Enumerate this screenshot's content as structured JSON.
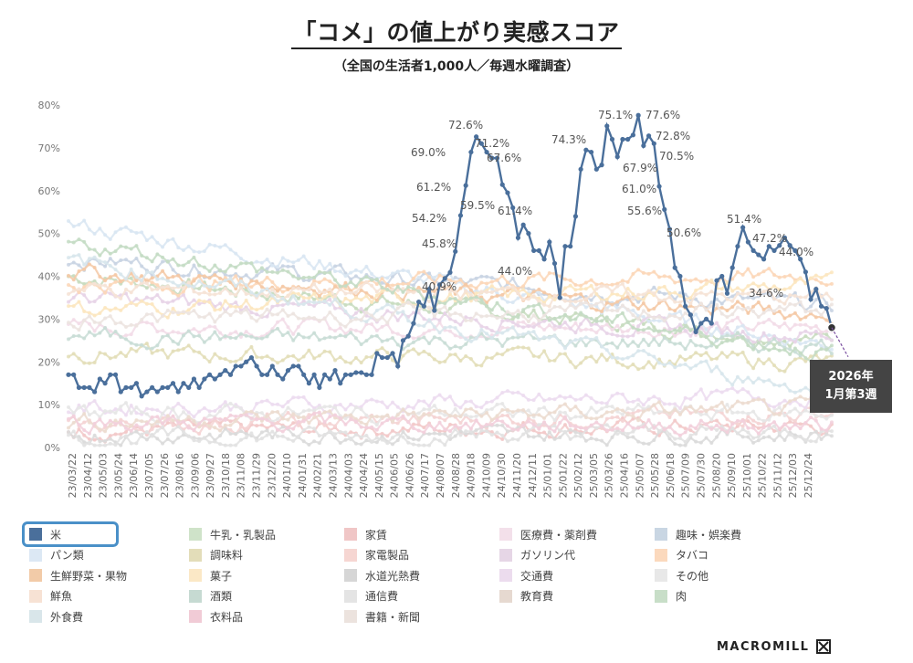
{
  "title": "「コメ」の値上がり実感スコア",
  "subtitle": "（全国の生活者1,000人／毎週水曜調査）",
  "callout": {
    "line1": "2026年",
    "line2": "1月第3週"
  },
  "brand": "MACROMILL",
  "chart_data": {
    "type": "line",
    "ylim": [
      0,
      80
    ],
    "yticks": [
      "0%",
      "10%",
      "20%",
      "30%",
      "40%",
      "50%",
      "60%",
      "70%",
      "80%"
    ],
    "x_tick_labels": [
      "23/03/22",
      "23/04/12",
      "23/05/03",
      "23/05/24",
      "23/06/14",
      "23/07/05",
      "23/07/26",
      "23/08/16",
      "23/09/06",
      "23/09/27",
      "23/10/18",
      "23/11/08",
      "23/11/29",
      "23/12/20",
      "24/01/10",
      "24/01/31",
      "24/02/21",
      "24/03/13",
      "24/04/03",
      "24/04/24",
      "24/05/15",
      "24/06/05",
      "24/06/26",
      "24/07/17",
      "24/08/07",
      "24/08/28",
      "24/09/18",
      "24/10/09",
      "24/10/30",
      "24/11/20",
      "24/12/11",
      "25/01/01",
      "25/01/22",
      "25/02/12",
      "25/03/05",
      "25/03/26",
      "25/04/16",
      "25/05/07",
      "25/05/28",
      "25/06/18",
      "25/07/09",
      "25/07/30",
      "25/08/20",
      "25/09/10",
      "25/10/01",
      "25/10/22",
      "25/11/12",
      "25/12/03",
      "25/12/24"
    ],
    "highlight_series": {
      "name": "米",
      "color": "#4a6f9b",
      "values": [
        17,
        17,
        14,
        14,
        14,
        13,
        16,
        15,
        17,
        17,
        13,
        14,
        14,
        15,
        12,
        13,
        14,
        13,
        14,
        14,
        15,
        13,
        15,
        14,
        16,
        14,
        16,
        17,
        16,
        17,
        18,
        17,
        19,
        19,
        20,
        21,
        19,
        17,
        17,
        19,
        17,
        16,
        18,
        19,
        19,
        17,
        15,
        17,
        14,
        17,
        16,
        18,
        15,
        17,
        17,
        17.5,
        17.5,
        17,
        17,
        22,
        21,
        21,
        22,
        19,
        25,
        26,
        29,
        34,
        33,
        37,
        32,
        38,
        39.5,
        40.9,
        45.8,
        54.2,
        61.2,
        69.0,
        72.6,
        71.0,
        69.0,
        67.6,
        67.6,
        61.4,
        59.5,
        56.0,
        49.0,
        52.0,
        50.0,
        46.0,
        46.0,
        44.0,
        48.0,
        43.0,
        35.0,
        47.0,
        47.0,
        54.0,
        65.0,
        69.5,
        69.0,
        65.0,
        66.0,
        75.1,
        72.0,
        67.9,
        72.0,
        72.0,
        73.0,
        77.6,
        70.5,
        72.8,
        71.0,
        61.0,
        55.6,
        51.0,
        42.0,
        40.0,
        33.0,
        31.0,
        27.0,
        29.0,
        30.0,
        29.0,
        39.0,
        40.0,
        36.0,
        42.0,
        47.0,
        51.4,
        48.0,
        46.0,
        45.0,
        44.0,
        47.0,
        46.0,
        47.2,
        49.0,
        47.2,
        46.0,
        44.0,
        41.0,
        34.6,
        37.0,
        33.0,
        32.5,
        28.0
      ],
      "data_labels": [
        {
          "value": "40.9%"
        },
        {
          "value": "45.8%"
        },
        {
          "value": "54.2%"
        },
        {
          "value": "61.2%"
        },
        {
          "value": "69.0%"
        },
        {
          "value": "72.6%"
        },
        {
          "value": "71.2%"
        },
        {
          "value": "67.6%"
        },
        {
          "value": "59.5%"
        },
        {
          "value": "61.4%"
        },
        {
          "value": "44.0%"
        },
        {
          "value": "74.3%"
        },
        {
          "value": "75.1%"
        },
        {
          "value": "67.9%"
        },
        {
          "value": "61.0%"
        },
        {
          "value": "77.6%"
        },
        {
          "value": "72.8%"
        },
        {
          "value": "70.5%"
        },
        {
          "value": "55.6%"
        },
        {
          "value": "50.6%"
        },
        {
          "value": "51.4%"
        },
        {
          "value": "47.2%"
        },
        {
          "value": "44.0%"
        },
        {
          "value": "34.6%"
        }
      ]
    },
    "background_series_levels": [
      {
        "color": "#c8dcc0",
        "start": 40,
        "end": 25
      },
      {
        "color": "#f2c9c9",
        "start": 4,
        "end": 5
      },
      {
        "color": "#f2dce8",
        "start": 28,
        "end": 28
      },
      {
        "color": "#c9d4e3",
        "start": 44,
        "end": 33
      },
      {
        "color": "#d9e6f2",
        "start": 52,
        "end": 24
      },
      {
        "color": "#e3deb8",
        "start": 22,
        "end": 20
      },
      {
        "color": "#f5d3d3",
        "start": 5,
        "end": 8
      },
      {
        "color": "#e8d4e8",
        "start": 35,
        "end": 26
      },
      {
        "color": "#fbd7b8",
        "start": 38,
        "end": 40
      },
      {
        "color": "#f4c9a6",
        "start": 41,
        "end": 31
      },
      {
        "color": "#fbe6c0",
        "start": 32,
        "end": 38
      },
      {
        "color": "#dadada",
        "start": 3,
        "end": 3
      },
      {
        "color": "#ecdcf0",
        "start": 9,
        "end": 12
      },
      {
        "color": "#e6e6e6",
        "start": 8,
        "end": 8
      },
      {
        "color": "#f6e3d6",
        "start": 37,
        "end": 35
      },
      {
        "color": "#c9ddd6",
        "start": 26,
        "end": 24
      },
      {
        "color": "#e2e2e2",
        "start": 2,
        "end": 4
      },
      {
        "color": "#ecdcd0",
        "start": 6,
        "end": 9
      },
      {
        "color": "#c4dcc4",
        "start": 48,
        "end": 22
      },
      {
        "color": "#d8e6ec",
        "start": 44,
        "end": 13
      },
      {
        "color": "#f2d0dc",
        "start": 6,
        "end": 5
      },
      {
        "color": "#ece4e0",
        "start": 30,
        "end": 32
      }
    ],
    "legend": [
      {
        "label": "米",
        "color": "#4a6f9b"
      },
      {
        "label": "牛乳・乳製品",
        "color": "#cfe3c9"
      },
      {
        "label": "家賃",
        "color": "#f0c6c6"
      },
      {
        "label": "医療費・薬剤費",
        "color": "#f3e0ea"
      },
      {
        "label": "趣味・娯楽費",
        "color": "#c9d6e3"
      },
      {
        "label": "パン類",
        "color": "#dce8f4"
      },
      {
        "label": "調味料",
        "color": "#e3ddb9"
      },
      {
        "label": "家電製品",
        "color": "#f6d6d2"
      },
      {
        "label": "ガソリン代",
        "color": "#e6d6e6"
      },
      {
        "label": "タバコ",
        "color": "#fbd9bd"
      },
      {
        "label": "生鮮野菜・果物",
        "color": "#f2cba8"
      },
      {
        "label": "菓子",
        "color": "#fbe8c6"
      },
      {
        "label": "水道光熱費",
        "color": "#d6d6d6"
      },
      {
        "label": "交通費",
        "color": "#ecdcee"
      },
      {
        "label": "その他",
        "color": "#e8e8e8"
      },
      {
        "label": "鮮魚",
        "color": "#f7e2d4"
      },
      {
        "label": "酒類",
        "color": "#c6dad2"
      },
      {
        "label": "通信費",
        "color": "#e4e4e4"
      },
      {
        "label": "教育費",
        "color": "#e6d9d0"
      },
      {
        "label": "肉",
        "color": "#c8dec8"
      },
      {
        "label": "外食費",
        "color": "#d9e6ea"
      },
      {
        "label": "衣料品",
        "color": "#f1cbd6"
      },
      {
        "label": "書籍・新聞",
        "color": "#ece3de"
      }
    ]
  }
}
